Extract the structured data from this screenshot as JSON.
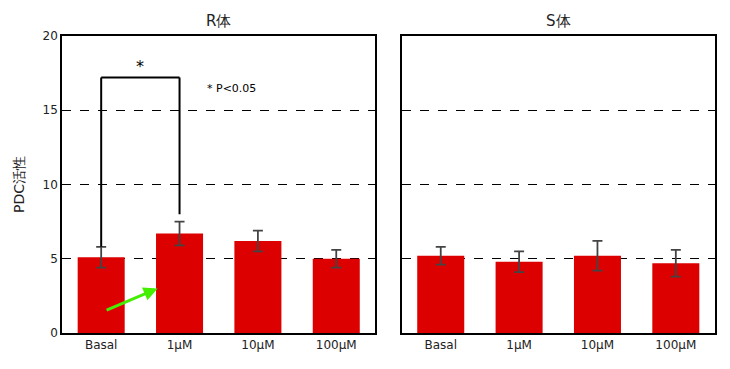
{
  "chart_data": [
    {
      "type": "bar",
      "title": "R体",
      "ylabel": "PDC活性",
      "categories": [
        "Basal",
        "1μM",
        "10μM",
        "100μM"
      ],
      "values": [
        5.1,
        6.7,
        6.2,
        5.0
      ],
      "errors": [
        0.7,
        0.8,
        0.7,
        0.6
      ],
      "color": "#DD0000",
      "ylim": [
        0,
        20
      ],
      "yticks": [
        0,
        5,
        10,
        15,
        20
      ],
      "grid": true,
      "bracket": {
        "from": "Basal",
        "to": "1μM",
        "top": 17.2,
        "left_end": 5.8,
        "right_end": 8.0,
        "label": "*",
        "annotation": "* P<0.05"
      },
      "arrow": {
        "from": "Basal",
        "to": "1μM",
        "y_from": 1.5,
        "y_to": 3.0,
        "color": "#44EE00"
      }
    },
    {
      "type": "bar",
      "title": "S体",
      "categories": [
        "Basal",
        "1μM",
        "10μM",
        "100μM"
      ],
      "values": [
        5.2,
        4.8,
        5.2,
        4.7
      ],
      "errors": [
        0.6,
        0.7,
        1.0,
        0.9
      ],
      "color": "#DD0000",
      "ylim": [
        0,
        20
      ],
      "yticks": [
        0,
        5,
        10,
        15,
        20
      ],
      "grid": true,
      "tick_labels": "x"
    }
  ]
}
